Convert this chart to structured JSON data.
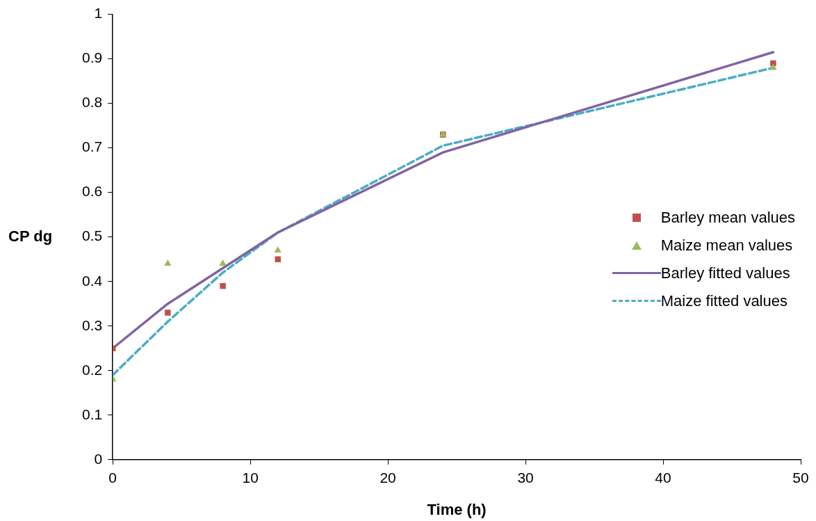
{
  "chart_data": {
    "type": "scatter",
    "xlabel": "Time (h)",
    "ylabel": "CP dg",
    "xlim": [
      0,
      50
    ],
    "xticks": [
      0,
      10,
      20,
      30,
      40,
      50
    ],
    "ylim": [
      0,
      1
    ],
    "yticks": [
      0,
      0.1,
      0.2,
      0.3,
      0.4,
      0.5,
      0.6,
      0.7,
      0.8,
      0.9,
      1
    ],
    "grid": false,
    "legend": "right",
    "series": [
      {
        "name": "Barley mean values",
        "type": "scatter",
        "marker": "square",
        "color": "#c0504d",
        "x": [
          0,
          4,
          8,
          12,
          24,
          48
        ],
        "values": [
          0.25,
          0.33,
          0.39,
          0.45,
          0.73,
          0.89
        ]
      },
      {
        "name": "Maize mean values",
        "type": "scatter",
        "marker": "triangle",
        "color": "#9bbb59",
        "x": [
          0,
          4,
          8,
          12,
          24,
          48
        ],
        "values": [
          0.18,
          0.44,
          0.44,
          0.47,
          0.73,
          0.88
        ]
      },
      {
        "name": "Barley fitted values",
        "type": "line",
        "line_style": "solid",
        "marker": "none",
        "color": "#8064a2",
        "x": [
          0,
          4,
          8,
          12,
          24,
          48
        ],
        "values": [
          0.25,
          0.35,
          0.43,
          0.51,
          0.69,
          0.915
        ]
      },
      {
        "name": "Maize fitted values",
        "type": "line",
        "line_style": "dashed",
        "marker": "none",
        "color": "#4bacc6",
        "x": [
          0,
          4,
          8,
          12,
          24,
          48
        ],
        "values": [
          0.19,
          0.31,
          0.42,
          0.51,
          0.705,
          0.88
        ]
      }
    ]
  }
}
